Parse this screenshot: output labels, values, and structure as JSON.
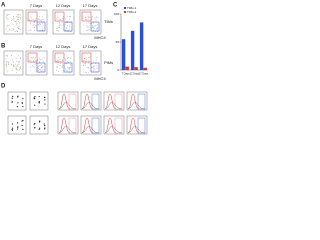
{
  "panels": {
    "a": {
      "label": "A",
      "columns": [
        "7 Days",
        "12 Days",
        "17 Days"
      ],
      "row_label": "TIMs",
      "x_axis": "MHCII"
    },
    "b": {
      "label": "B",
      "columns": [
        "7 Days",
        "12 Days",
        "17 Days"
      ],
      "row_label": "PIMs",
      "x_axis": "MHCII"
    },
    "c": {
      "label": "C"
    },
    "d": {
      "label": "D"
    }
  },
  "chart_data": {
    "type": "bar",
    "categories": [
      "7 Days",
      "12 Days",
      "17 Days"
    ],
    "series": [
      {
        "name": "TIMs-1",
        "color": "#2b4fd6",
        "values": [
          55,
          70,
          85
        ]
      },
      {
        "name": "TIMs-2",
        "color": "#e03030",
        "values": [
          6,
          5,
          4
        ]
      }
    ],
    "ylim": [
      0,
      100
    ],
    "yticks": [
      0,
      50,
      100
    ],
    "legend": "top-left"
  }
}
